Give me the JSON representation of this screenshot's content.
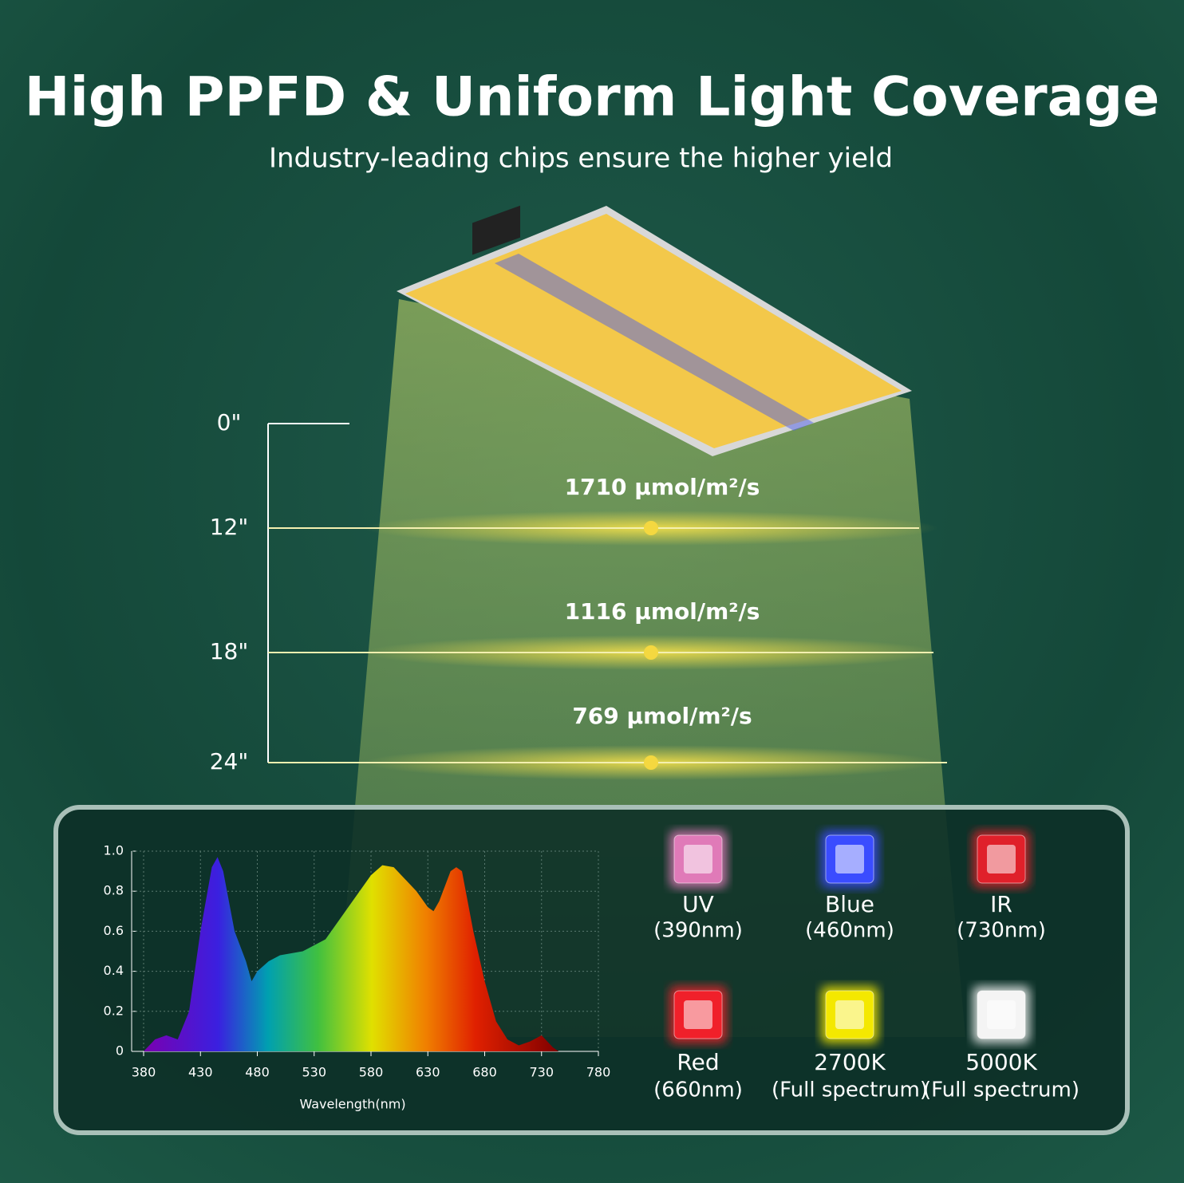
{
  "header": {
    "title": "High PPFD & Uniform Light Coverage",
    "subtitle": "Industry-leading chips ensure the higher yield"
  },
  "ppfd": {
    "heights": [
      "0\"",
      "12\"",
      "18\"",
      "24\""
    ],
    "readings": [
      "1710 µmol/m²/s",
      "1116 µmol/m²/s",
      "769 µmol/m²/s"
    ]
  },
  "chart_data": {
    "type": "area",
    "x_label": "Wavelength(nm)",
    "xlim": [
      380,
      780
    ],
    "xticks": [
      380,
      430,
      480,
      530,
      580,
      630,
      680,
      730,
      780
    ],
    "ylim": [
      0,
      1
    ],
    "yticks": [
      0,
      0.2,
      0.4,
      0.6,
      0.8,
      {
        "value": 1,
        "label": "1.0"
      }
    ],
    "grid": true,
    "x": [
      380,
      390,
      400,
      410,
      420,
      430,
      440,
      445,
      450,
      460,
      470,
      475,
      480,
      490,
      500,
      520,
      540,
      560,
      580,
      590,
      600,
      620,
      630,
      635,
      640,
      650,
      655,
      660,
      670,
      680,
      690,
      700,
      710,
      720,
      730,
      740,
      745
    ],
    "values": [
      0,
      0.06,
      0.08,
      0.06,
      0.2,
      0.6,
      0.92,
      0.97,
      0.9,
      0.6,
      0.45,
      0.35,
      0.4,
      0.45,
      0.48,
      0.5,
      0.56,
      0.72,
      0.88,
      0.93,
      0.92,
      0.8,
      0.72,
      0.7,
      0.75,
      0.9,
      0.92,
      0.9,
      0.6,
      0.35,
      0.15,
      0.06,
      0.03,
      0.05,
      0.08,
      0.02,
      0
    ]
  },
  "chips": [
    {
      "name": "UV",
      "detail": "(390nm)",
      "color": "#e07ab8"
    },
    {
      "name": "Blue",
      "detail": "(460nm)",
      "color": "#3a4cff"
    },
    {
      "name": "IR",
      "detail": "(730nm)",
      "color": "#e0202a"
    },
    {
      "name": "Red",
      "detail": "(660nm)",
      "color": "#f0202a"
    },
    {
      "name": "2700K",
      "detail": "(Full spectrum)",
      "color": "#f4e800"
    },
    {
      "name": "5000K",
      "detail": "(Full spectrum)",
      "color": "#f4f4f4"
    }
  ]
}
